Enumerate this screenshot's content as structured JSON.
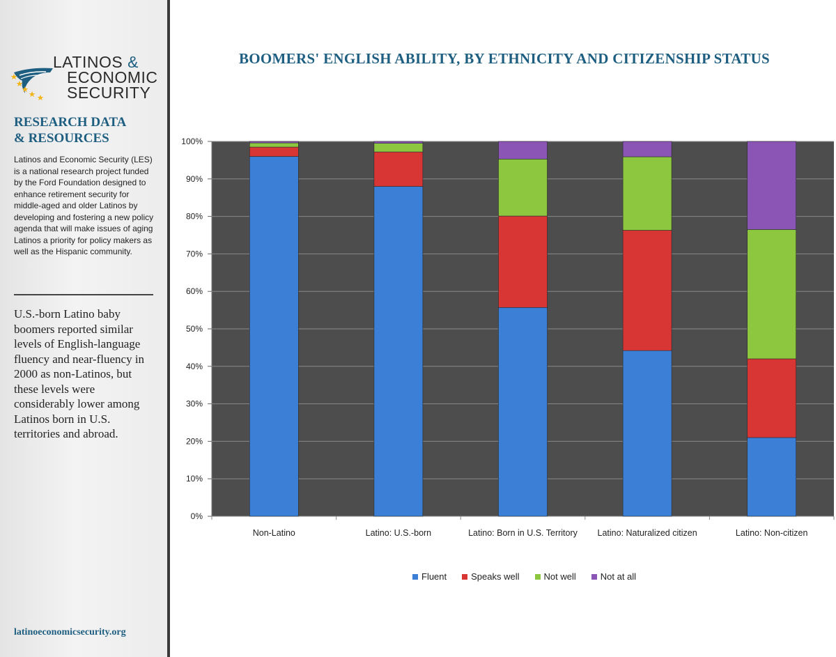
{
  "sidebar": {
    "logo": {
      "line1": "LATINOS",
      "amp": "&",
      "line2": "ECONOMIC",
      "line3": "SECURITY"
    },
    "heading_line1": "RESEARCH DATA",
    "heading_line2": "& RESOURCES",
    "about_text": "Latinos and Economic Security (LES) is a national research project funded by the Ford Foundation designed to enhance retirement security for middle-aged and older Latinos by developing and fostering a new policy agenda that will make issues of aging Latinos a priority for policy makers as well as the Hispanic community.",
    "finding_text": "U.S.-born Latino baby boomers reported similar levels of English-language fluency and near-fluency in 2000 as non-Latinos, but these levels were considerably lower among Latinos born in U.S. territories and abroad.",
    "site_url": "latinoeconomicsecurity.org"
  },
  "colors": {
    "brand": "#1e5e80",
    "plot_background": "#4d4d4d",
    "fluent": "#3c7fd6",
    "speaks_well": "#d83535",
    "not_well": "#8dc63f",
    "not_at_all": "#8a55b5"
  },
  "chart_data": {
    "type": "bar",
    "stacked": true,
    "title": "BOOMERS' ENGLISH ABILITY, BY ETHNICITY AND CITIZENSHIP STATUS",
    "categories": [
      "Non-Latino",
      "Latino: U.S.-born",
      "Latino: Born in U.S. Territory",
      "Latino: Naturalized citizen",
      "Latino: Non-citizen"
    ],
    "series": [
      {
        "name": "Fluent",
        "values": [
          96,
          88,
          55.7,
          44.2,
          21
        ]
      },
      {
        "name": "Speaks well",
        "values": [
          2.5,
          9.2,
          24.4,
          32.1,
          21
        ]
      },
      {
        "name": "Not well",
        "values": [
          1.1,
          2.3,
          15.2,
          19.6,
          34.5
        ]
      },
      {
        "name": "Not at all",
        "values": [
          0.4,
          0.5,
          4.7,
          4.1,
          23.5
        ]
      }
    ],
    "y_ticks": [
      "0%",
      "10%",
      "20%",
      "30%",
      "40%",
      "50%",
      "60%",
      "70%",
      "80%",
      "90%",
      "100%"
    ],
    "ylim": [
      0,
      100
    ],
    "grid": true,
    "legend_position": "bottom"
  }
}
